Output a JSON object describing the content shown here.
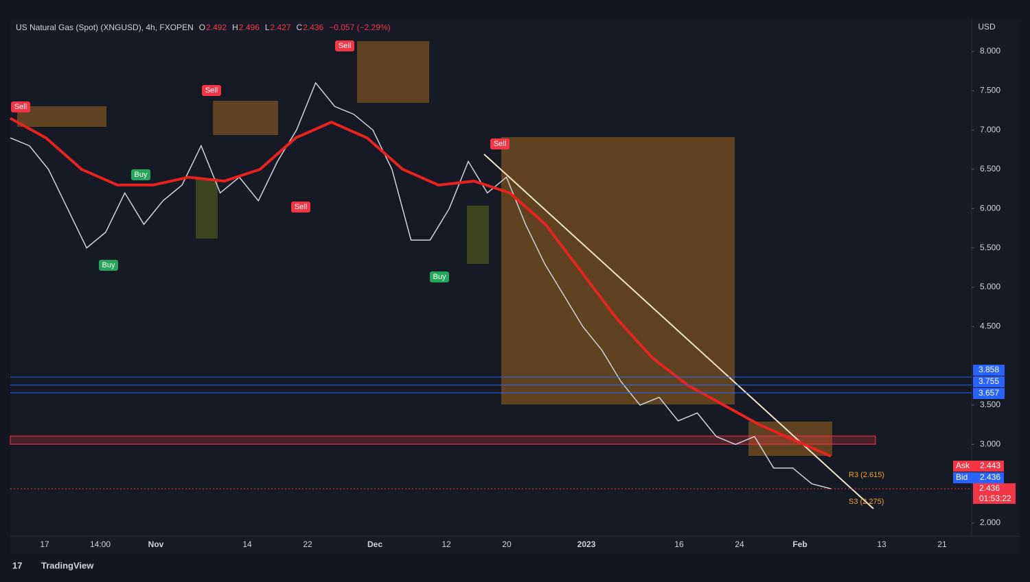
{
  "header": {
    "symbol": "US Natural Gas (Spot) (XNGUSD), 4h, FXOPEN",
    "ohlc": [
      {
        "key": "O",
        "value": "2.492"
      },
      {
        "key": "H",
        "value": "2.496"
      },
      {
        "key": "L",
        "value": "2.427"
      },
      {
        "key": "C",
        "value": "2.436"
      }
    ],
    "change": "−0.057 (−2.29%)",
    "currency": "USD"
  },
  "chart_data": {
    "type": "line",
    "series": [
      {
        "color": "#d1d4dc",
        "values": [
          6.9,
          6.8,
          6.5,
          6.0,
          5.5,
          5.7,
          6.2,
          5.8,
          6.1,
          6.3,
          6.8,
          6.2,
          6.4,
          6.1,
          6.6,
          7.0,
          7.6,
          7.3,
          7.2,
          7.0,
          6.5,
          5.6,
          5.6,
          6.0,
          6.6,
          6.2,
          6.4,
          5.8,
          5.3,
          4.9,
          4.5,
          4.2,
          3.8,
          3.5,
          3.6,
          3.3,
          3.4,
          3.1,
          3.0,
          3.1,
          2.7,
          2.7,
          2.5,
          2.436
        ]
      },
      {
        "color": "#e8231f",
        "values": [
          7.15,
          6.9,
          6.5,
          6.3,
          6.3,
          6.4,
          6.35,
          6.5,
          6.9,
          7.1,
          6.9,
          6.5,
          6.3,
          6.35,
          6.2,
          5.8,
          5.2,
          4.6,
          4.1,
          3.75,
          3.5,
          3.25,
          3.05,
          2.85
        ]
      }
    ],
    "ylim": [
      1.7,
      8.3
    ],
    "yticks": [
      {
        "value": 2,
        "label": "2.000"
      },
      {
        "value": 3,
        "label": "3.000"
      },
      {
        "value": 3.5,
        "label": "3.500"
      },
      {
        "value": 4.5,
        "label": "4.500"
      },
      {
        "value": 5,
        "label": "5.000"
      },
      {
        "value": 5.5,
        "label": "5.500"
      },
      {
        "value": 6,
        "label": "6.000"
      },
      {
        "value": 6.5,
        "label": "6.500"
      },
      {
        "value": 7,
        "label": "7.000"
      },
      {
        "value": 7.5,
        "label": "7.500"
      },
      {
        "value": 8,
        "label": "8.000"
      }
    ],
    "x_labels": [
      "17",
      "14:00",
      "Nov",
      "14",
      "22",
      "Dec",
      "12",
      "20",
      "2023",
      "16",
      "24",
      "Feb",
      "13",
      "21"
    ],
    "hlines": [
      {
        "value": 3.858,
        "label": "3.858",
        "color": "#2962ff"
      },
      {
        "value": 3.755,
        "label": "3.755",
        "color": "#2962ff"
      },
      {
        "value": 3.657,
        "label": "3.657",
        "color": "#2962ff"
      }
    ],
    "last_price": {
      "value": 2.436,
      "label": "2.436",
      "countdown": "01:53:22",
      "color": "#f23645"
    },
    "ask": {
      "key": "Ask",
      "value": "2.443"
    },
    "bid": {
      "key": "Bid",
      "value": "2.436"
    },
    "signals": [
      "Sell",
      "Sell",
      "Sell",
      "Buy",
      "Buy",
      "Sell",
      "Buy",
      "Sell"
    ],
    "pivots": [
      "R3 (2.615)",
      "S3 (2.275)"
    ]
  },
  "footer": {
    "brand": "TradingView"
  }
}
